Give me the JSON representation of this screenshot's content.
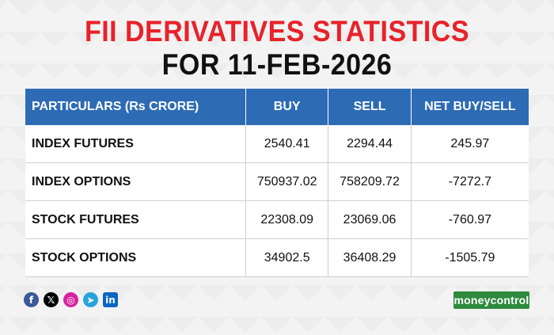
{
  "title": {
    "line1": "FII DERIVATIVES STATISTICS",
    "line2": "FOR  11-FEB-2026"
  },
  "table": {
    "headers": [
      "PARTICULARS (Rs CRORE)",
      "BUY",
      "SELL",
      "NET BUY/SELL"
    ],
    "rows": [
      [
        "INDEX FUTURES",
        "2540.41",
        "2294.44",
        "245.97"
      ],
      [
        "INDEX OPTIONS",
        "750937.02",
        "758209.72",
        "-7272.7"
      ],
      [
        "STOCK FUTURES",
        "22308.09",
        "23069.06",
        "-760.97"
      ],
      [
        "STOCK OPTIONS",
        "34902.5",
        "36408.29",
        "-1505.79"
      ]
    ]
  },
  "social_icons": [
    "facebook-icon",
    "x-icon",
    "instagram-icon",
    "telegram-icon",
    "linkedin-icon"
  ],
  "logo": "moneycontrol",
  "colors": {
    "title_red": "#e8222a",
    "header_blue": "#2d6bb5",
    "logo_green": "#2e8b3e"
  }
}
